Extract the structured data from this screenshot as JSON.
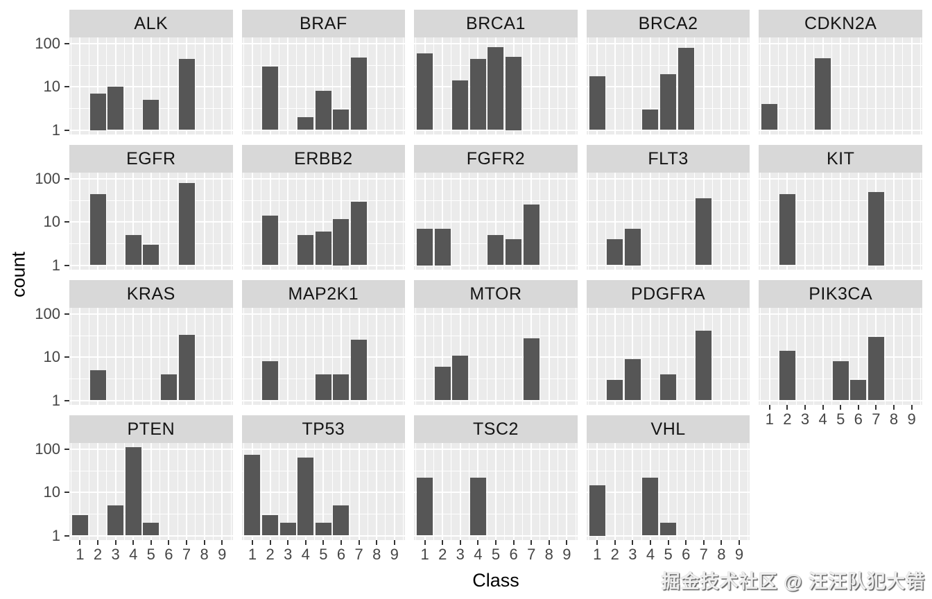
{
  "watermark": "掘金技术社区 @ 汪汪队犯大错",
  "colors": {
    "bar_fill": "#565656",
    "panel_background": "#ebebeb",
    "strip_background": "#d8d8d8",
    "gridline": "#ffffff",
    "axis_text": "#454545",
    "strip_text": "#141414",
    "axis_title_text": "#000000",
    "tick_mark": "#333333"
  },
  "chart_data": {
    "type": "bar",
    "title": "",
    "facet_variable": "gene",
    "xlabel": "Class",
    "ylabel": "count",
    "x_categories": [
      "1",
      "2",
      "3",
      "4",
      "5",
      "6",
      "7",
      "8",
      "9"
    ],
    "y_scale": "log10",
    "y_tick_values": [
      1,
      10,
      100
    ],
    "y_tick_labels": [
      "1",
      "10",
      "100"
    ],
    "ylim": [
      0.8,
      140
    ],
    "grid": "white major and minor gridlines on grey panel",
    "legend": "none",
    "layout": {
      "ncol": 5,
      "nrow": 4
    },
    "facets": [
      {
        "label": "ALK",
        "values": [
          null,
          7,
          10,
          null,
          5,
          null,
          45,
          null,
          null
        ]
      },
      {
        "label": "BRAF",
        "values": [
          null,
          30,
          null,
          2,
          8,
          3,
          48,
          null,
          null
        ]
      },
      {
        "label": "BRCA1",
        "values": [
          60,
          null,
          14,
          45,
          85,
          50,
          null,
          null,
          null
        ]
      },
      {
        "label": "BRCA2",
        "values": [
          18,
          null,
          null,
          3,
          20,
          80,
          null,
          null,
          null
        ]
      },
      {
        "label": "CDKN2A",
        "values": [
          4,
          null,
          null,
          47,
          null,
          null,
          null,
          null,
          null
        ]
      },
      {
        "label": "EGFR",
        "values": [
          null,
          45,
          null,
          5,
          3,
          null,
          80,
          null,
          null
        ]
      },
      {
        "label": "ERBB2",
        "values": [
          null,
          14,
          null,
          5,
          6,
          12,
          30,
          null,
          null
        ]
      },
      {
        "label": "FGFR2",
        "values": [
          7,
          7,
          null,
          null,
          5,
          4,
          26,
          null,
          null
        ]
      },
      {
        "label": "FLT3",
        "values": [
          null,
          4,
          7,
          null,
          null,
          null,
          36,
          null,
          null
        ]
      },
      {
        "label": "KIT",
        "values": [
          null,
          45,
          null,
          null,
          null,
          null,
          50,
          null,
          null
        ]
      },
      {
        "label": "KRAS",
        "values": [
          null,
          5,
          null,
          null,
          null,
          4,
          33,
          null,
          null
        ]
      },
      {
        "label": "MAP2K1",
        "values": [
          null,
          8,
          null,
          null,
          4,
          4,
          26,
          null,
          null
        ]
      },
      {
        "label": "MTOR",
        "values": [
          null,
          6,
          11,
          null,
          null,
          null,
          28,
          null,
          null
        ]
      },
      {
        "label": "PDGFRA",
        "values": [
          null,
          3,
          9,
          null,
          4,
          null,
          42,
          null,
          null
        ]
      },
      {
        "label": "PIK3CA",
        "values": [
          null,
          14,
          null,
          null,
          8,
          3,
          30,
          null,
          null
        ]
      },
      {
        "label": "PTEN",
        "values": [
          3,
          null,
          5,
          115,
          2,
          null,
          null,
          null,
          null
        ]
      },
      {
        "label": "TP53",
        "values": [
          75,
          3,
          2,
          65,
          2,
          5,
          null,
          null,
          null
        ]
      },
      {
        "label": "TSC2",
        "values": [
          22,
          null,
          null,
          22,
          null,
          null,
          null,
          null,
          null
        ]
      },
      {
        "label": "VHL",
        "values": [
          15,
          null,
          null,
          22,
          2,
          null,
          null,
          null,
          null
        ]
      }
    ]
  }
}
